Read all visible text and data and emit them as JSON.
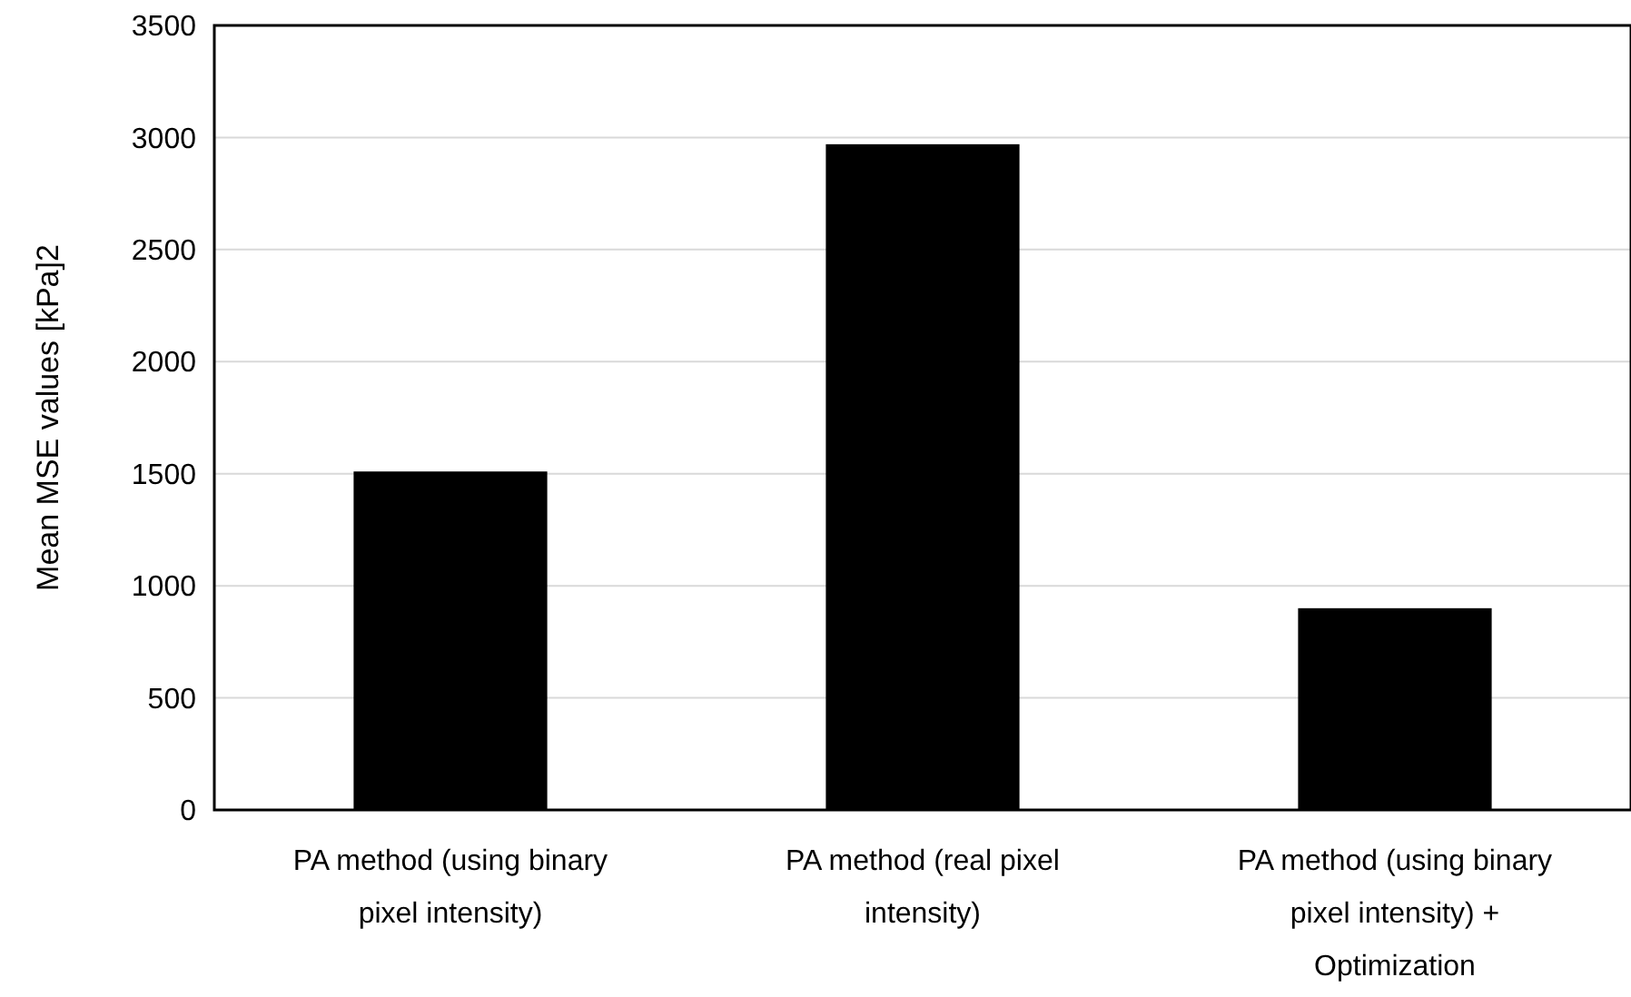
{
  "chart_data": {
    "type": "bar",
    "ylabel": "Mean MSE values [kPa]2",
    "categories": [
      "PA method (using binary pixel intensity)",
      "PA method (real pixel intensity)",
      "PA method (using binary pixel intensity) + Optimization"
    ],
    "values": [
      1510,
      2970,
      900
    ],
    "color": "#000000",
    "ylim": [
      0,
      3500
    ],
    "yticks": [
      0,
      500,
      1000,
      1500,
      2000,
      2500,
      3000,
      3500
    ],
    "grid": "y"
  }
}
